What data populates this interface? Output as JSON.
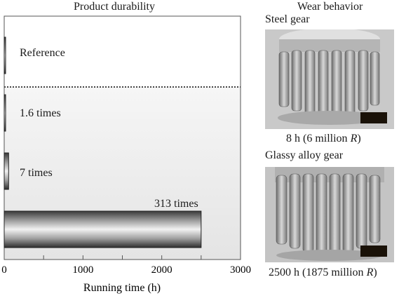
{
  "chart_data": {
    "type": "bar",
    "orientation": "horizontal",
    "title": "Product durability",
    "xlabel": "Running time (h)",
    "xlim": [
      0,
      3000
    ],
    "xticks": [
      "0",
      "1000",
      "2000",
      "3000"
    ],
    "categories": [
      "Reference",
      "1.6 times",
      "7 times",
      "313 times"
    ],
    "values": [
      8,
      13,
      56,
      2500
    ],
    "data_labels": [
      "Reference",
      "1.6 times",
      "7 times",
      "313 times"
    ],
    "reference_line": "dotted",
    "grid": false
  },
  "wear": {
    "title": "Wear behavior",
    "steel": {
      "label": "Steel gear",
      "caption_prefix": "8 h (6 million ",
      "caption_unit": "R",
      "caption_suffix": ")"
    },
    "glassy": {
      "label": "Glassy alloy gear",
      "caption_prefix": "2500 h (1875 million ",
      "caption_unit": "R",
      "caption_suffix": ")"
    }
  }
}
